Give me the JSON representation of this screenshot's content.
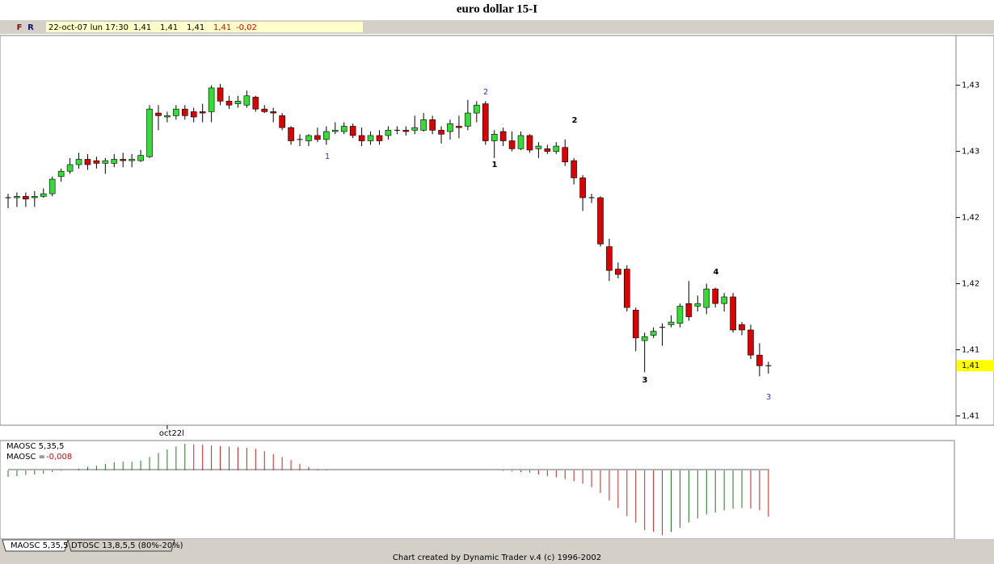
{
  "window": {
    "title": "euro dollar 15-I",
    "footer": "Chart created by Dynamic Trader v.4  (c) 1996-2002"
  },
  "header": {
    "buttons": [
      "F",
      "R"
    ],
    "datetime": "22-oct-07 lun 17:30",
    "quotes": [
      {
        "text": "1,41",
        "color": "#000000"
      },
      {
        "text": "1,41",
        "color": "#000000"
      },
      {
        "text": "1,41",
        "color": "#000000"
      },
      {
        "text": "1,41",
        "color": "#dd0000"
      },
      {
        "text": "-0,02",
        "color": "#dd0000"
      }
    ]
  },
  "chart_data": [
    {
      "type": "candlestick",
      "xtick_label": "oct22l",
      "ylim": [
        1.4068,
        1.4362
      ],
      "yticks": [
        {
          "value": 1.4325,
          "label": "1,43"
        },
        {
          "value": 1.4275,
          "label": "1,43"
        },
        {
          "value": 1.4225,
          "label": "1,42"
        },
        {
          "value": 1.4175,
          "label": "1,42"
        },
        {
          "value": 1.4125,
          "label": "1,41"
        },
        {
          "value": 1.4075,
          "label": "1,41"
        }
      ],
      "last_price": {
        "value": 1.4113,
        "label": "1,41"
      },
      "up_color": "#33dd33",
      "down_color": "#dd0000",
      "doji_color": "#000000",
      "open": [
        1.424,
        1.424,
        1.4241,
        1.424,
        1.4241,
        1.4243,
        1.4256,
        1.426,
        1.4265,
        1.4269,
        1.4268,
        1.4266,
        1.4266,
        1.4269,
        1.4268,
        1.4268,
        1.4271,
        1.4304,
        1.4301,
        1.4302,
        1.4307,
        1.4305,
        1.4305,
        1.4305,
        1.4323,
        1.4313,
        1.4311,
        1.431,
        1.4316,
        1.4307,
        1.4305,
        1.4302,
        1.4293,
        1.4284,
        1.4283,
        1.4287,
        1.4284,
        1.429,
        1.429,
        1.4294,
        1.4287,
        1.4283,
        1.4287,
        1.4287,
        1.4291,
        1.4291,
        1.4291,
        1.4291,
        1.4299,
        1.4291,
        1.429,
        1.4294,
        1.4294,
        1.4304,
        1.4311,
        1.4283,
        1.429,
        1.4283,
        1.4277,
        1.4287,
        1.4277,
        1.4277,
        1.4275,
        1.4278,
        1.4268,
        1.4255,
        1.424,
        1.424,
        1.4203,
        1.4186,
        1.4186,
        1.4155,
        1.4132,
        1.4136,
        1.4142,
        1.4144,
        1.4145,
        1.416,
        1.4158,
        1.4157,
        1.4171,
        1.416,
        1.4165,
        1.4144,
        1.414,
        1.4121,
        1.4113
      ],
      "high": [
        1.4243,
        1.4244,
        1.4244,
        1.4245,
        1.4247,
        1.4256,
        1.4262,
        1.427,
        1.4274,
        1.4273,
        1.4271,
        1.427,
        1.4273,
        1.4274,
        1.4273,
        1.4276,
        1.431,
        1.431,
        1.4305,
        1.431,
        1.431,
        1.4308,
        1.4311,
        1.4325,
        1.4326,
        1.4317,
        1.4317,
        1.4321,
        1.4317,
        1.431,
        1.4308,
        1.4304,
        1.4294,
        1.4288,
        1.4288,
        1.4293,
        1.4294,
        1.4297,
        1.4297,
        1.4296,
        1.4293,
        1.429,
        1.4291,
        1.4294,
        1.4294,
        1.4294,
        1.4302,
        1.4304,
        1.4302,
        1.4294,
        1.4299,
        1.4302,
        1.4314,
        1.4313,
        1.4313,
        1.4291,
        1.4293,
        1.429,
        1.429,
        1.4288,
        1.4282,
        1.428,
        1.4282,
        1.4284,
        1.427,
        1.4257,
        1.4243,
        1.4241,
        1.4209,
        1.4191,
        1.4189,
        1.4157,
        1.4138,
        1.4142,
        1.4145,
        1.4151,
        1.416,
        1.4177,
        1.4166,
        1.4175,
        1.4172,
        1.4168,
        1.4168,
        1.4146,
        1.4144,
        1.413,
        1.4116
      ],
      "low": [
        1.4232,
        1.4233,
        1.4233,
        1.4233,
        1.424,
        1.4241,
        1.4252,
        1.4258,
        1.4262,
        1.4261,
        1.4262,
        1.4258,
        1.4263,
        1.4263,
        1.4263,
        1.4267,
        1.427,
        1.4291,
        1.4297,
        1.4299,
        1.4299,
        1.4297,
        1.4297,
        1.4297,
        1.431,
        1.4307,
        1.4308,
        1.4308,
        1.4305,
        1.4304,
        1.4297,
        1.4291,
        1.428,
        1.4279,
        1.4279,
        1.4282,
        1.428,
        1.4288,
        1.4288,
        1.4285,
        1.4279,
        1.428,
        1.428,
        1.4284,
        1.4288,
        1.4287,
        1.4288,
        1.429,
        1.4288,
        1.4281,
        1.4284,
        1.4285,
        1.4291,
        1.4297,
        1.428,
        1.427,
        1.4279,
        1.4275,
        1.4276,
        1.4274,
        1.427,
        1.4273,
        1.4273,
        1.4264,
        1.425,
        1.423,
        1.4236,
        1.4203,
        1.4177,
        1.4179,
        1.4154,
        1.4124,
        1.4108,
        1.4134,
        1.4128,
        1.4142,
        1.4142,
        1.4147,
        1.4154,
        1.4152,
        1.4157,
        1.4154,
        1.4138,
        1.4136,
        1.4118,
        1.4105,
        1.4107
      ],
      "close": [
        1.424,
        1.4241,
        1.4239,
        1.4241,
        1.4243,
        1.4254,
        1.426,
        1.4265,
        1.4269,
        1.4265,
        1.4266,
        1.4268,
        1.4269,
        1.4268,
        1.4269,
        1.4272,
        1.4307,
        1.4302,
        1.4302,
        1.4307,
        1.4302,
        1.4301,
        1.4304,
        1.4323,
        1.4313,
        1.431,
        1.4313,
        1.4317,
        1.4307,
        1.4305,
        1.4304,
        1.4293,
        1.4283,
        1.4284,
        1.4287,
        1.4284,
        1.429,
        1.4291,
        1.4294,
        1.4287,
        1.4283,
        1.4287,
        1.4283,
        1.4291,
        1.4291,
        1.429,
        1.4293,
        1.4299,
        1.4291,
        1.4288,
        1.4296,
        1.4293,
        1.4304,
        1.431,
        1.4283,
        1.4288,
        1.4283,
        1.4277,
        1.4287,
        1.4276,
        1.4279,
        1.4275,
        1.4279,
        1.4267,
        1.4255,
        1.424,
        1.424,
        1.4205,
        1.4185,
        1.4182,
        1.4157,
        1.4134,
        1.4135,
        1.4139,
        1.4142,
        1.4146,
        1.4158,
        1.415,
        1.416,
        1.4171,
        1.416,
        1.4165,
        1.414,
        1.414,
        1.4121,
        1.4113,
        1.4113
      ],
      "annotations": [
        {
          "text": "2",
          "color": "#3333cc"
        },
        {
          "text": "1",
          "color": "#3333cc"
        },
        {
          "text": "2",
          "color": "#000000"
        },
        {
          "text": "1",
          "color": "#000000"
        },
        {
          "text": "3",
          "color": "#000000"
        },
        {
          "text": "4",
          "color": "#000000"
        },
        {
          "text": "3",
          "color": "#3333cc"
        }
      ]
    },
    {
      "type": "histogram-oscillator",
      "name": "MAOSC 5,35,5",
      "value_caption": "MAOSC =",
      "value_label": "-0,008",
      "ylim": [
        -0.0117,
        0.005
      ],
      "rise_color": "#1f7a1f",
      "fall_color": "#cc2222",
      "values": [
        -0.0011,
        -0.001,
        -0.0008,
        -0.0007,
        -0.0006,
        -0.0003,
        -0.0001,
        0,
        0.0003,
        0.0006,
        0.0008,
        0.0011,
        0.0014,
        0.0015,
        0.0015,
        0.0017,
        0.0023,
        0.003,
        0.0036,
        0.0041,
        0.0046,
        0.0045,
        0.0044,
        0.0043,
        0.0042,
        0.0041,
        0.004,
        0.0039,
        0.0037,
        0.0033,
        0.0028,
        0.0023,
        0.0018,
        0.0011,
        0.0006,
        0.0002,
        0.0001,
        0,
        0,
        0,
        0,
        0,
        0,
        0,
        0,
        0,
        0,
        0,
        0,
        0,
        0,
        0,
        0,
        0,
        0,
        0,
        -0.0001,
        -0.0002,
        -0.0003,
        -0.0004,
        -0.0007,
        -0.001,
        -0.0012,
        -0.0015,
        -0.0019,
        -0.0023,
        -0.0029,
        -0.0039,
        -0.0052,
        -0.0065,
        -0.0079,
        -0.009,
        -0.0103,
        -0.0106,
        -0.0112,
        -0.0106,
        -0.0099,
        -0.009,
        -0.0083,
        -0.0076,
        -0.0073,
        -0.0069,
        -0.0066,
        -0.0065,
        -0.0066,
        -0.0069,
        -0.008
      ]
    }
  ],
  "tabs": [
    "MAOSC 5,35,5",
    "DTOSC 13,8,5,5 (80%-20%)"
  ]
}
